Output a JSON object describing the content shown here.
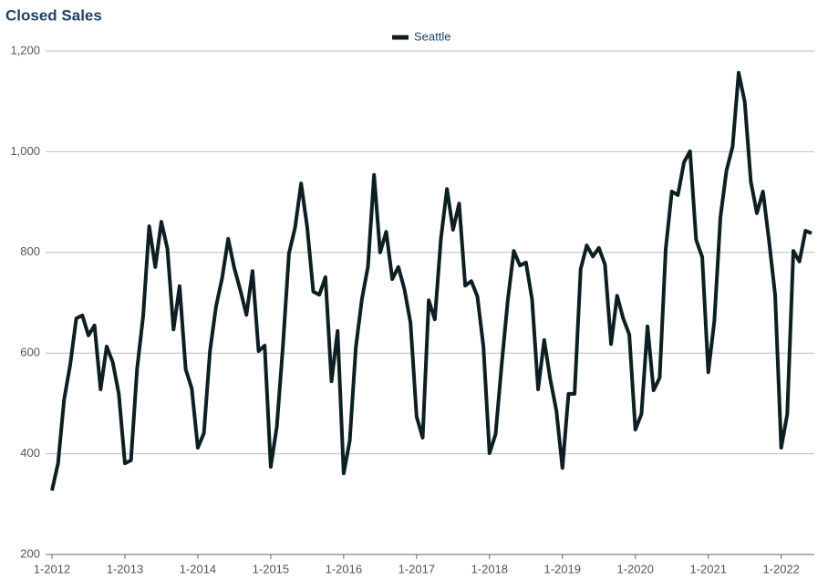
{
  "chart_data": {
    "type": "line",
    "title": "Closed Sales",
    "categories": [
      "1-2012",
      null,
      null,
      null,
      null,
      null,
      null,
      null,
      null,
      null,
      null,
      null,
      "1-2013",
      null,
      null,
      null,
      null,
      null,
      null,
      null,
      null,
      null,
      null,
      null,
      "1-2014",
      null,
      null,
      null,
      null,
      null,
      null,
      null,
      null,
      null,
      null,
      null,
      "1-2015",
      null,
      null,
      null,
      null,
      null,
      null,
      null,
      null,
      null,
      null,
      null,
      "1-2016",
      null,
      null,
      null,
      null,
      null,
      null,
      null,
      null,
      null,
      null,
      null,
      "1-2017",
      null,
      null,
      null,
      null,
      null,
      null,
      null,
      null,
      null,
      null,
      null,
      "1-2018",
      null,
      null,
      null,
      null,
      null,
      null,
      null,
      null,
      null,
      null,
      null,
      "1-2019",
      null,
      null,
      null,
      null,
      null,
      null,
      null,
      null,
      null,
      null,
      null,
      "1-2020",
      null,
      null,
      null,
      null,
      null,
      null,
      null,
      null,
      null,
      null,
      null,
      "1-2021",
      null,
      null,
      null,
      null,
      null,
      null,
      null,
      null,
      null,
      null,
      null,
      "1-2022",
      null,
      null,
      null,
      null,
      null
    ],
    "series": [
      {
        "name": "Seattle",
        "color": "#0d1f22",
        "values": [
          327,
          381,
          508,
          577,
          669,
          675,
          635,
          655,
          528,
          613,
          582,
          519,
          381,
          387,
          568,
          673,
          852,
          771,
          861,
          807,
          647,
          733,
          568,
          530,
          412,
          441,
          604,
          693,
          749,
          827,
          769,
          725,
          676,
          763,
          604,
          615,
          374,
          454,
          613,
          798,
          849,
          937,
          850,
          722,
          716,
          751,
          544,
          644,
          361,
          426,
          611,
          707,
          772,
          954,
          800,
          841,
          747,
          771,
          727,
          660,
          474,
          432,
          705,
          667,
          827,
          926,
          845,
          897,
          734,
          743,
          713,
          613,
          401,
          439,
          577,
          704,
          803,
          774,
          780,
          707,
          528,
          626,
          548,
          486,
          372,
          519,
          519,
          767,
          814,
          792,
          809,
          776,
          618,
          714,
          669,
          637,
          448,
          479,
          653,
          526,
          551,
          807,
          921,
          914,
          979,
          1001,
          825,
          791,
          562,
          664,
          870,
          963,
          1010,
          1157,
          1099,
          941,
          878,
          921,
          823,
          716,
          412,
          479,
          803,
          782,
          843,
          838
        ]
      }
    ],
    "ylim": [
      200,
      1200
    ],
    "yticks": [
      200,
      400,
      600,
      800,
      {
        "value": 1000,
        "label": "1,000"
      },
      {
        "value": 1200,
        "label": "1,200"
      }
    ],
    "grid": true,
    "legend": "top"
  }
}
